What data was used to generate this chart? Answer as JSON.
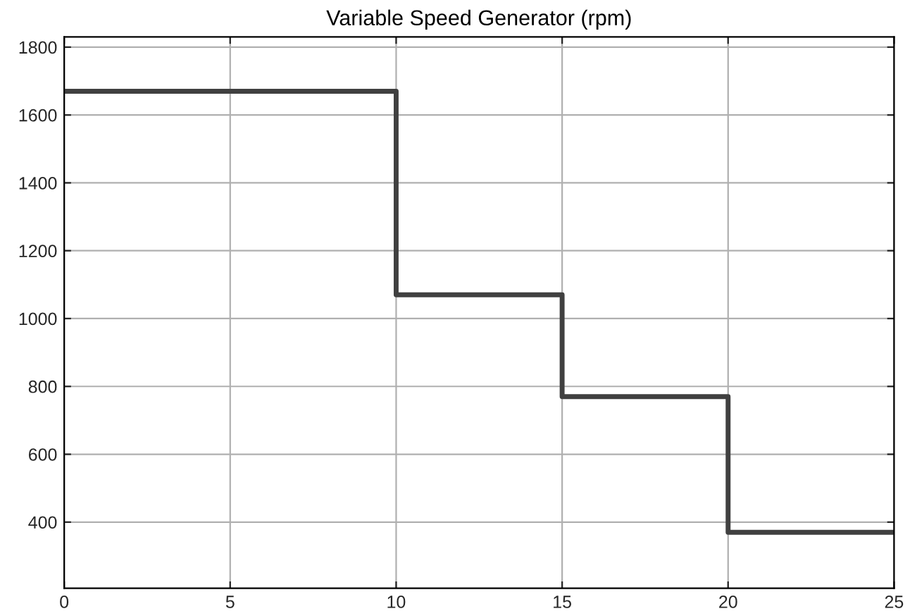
{
  "chart_data": {
    "type": "step",
    "title": "Variable Speed Generator (rpm)",
    "x": [
      0,
      10,
      15,
      20,
      25
    ],
    "series": [
      {
        "color": "#404040",
        "values": [
          1670,
          1070,
          770,
          370,
          370
        ]
      }
    ],
    "xlim": [
      0,
      25
    ],
    "xticks": [
      0,
      5,
      10,
      15,
      20,
      25
    ],
    "ylim": [
      205,
      1830
    ],
    "yticks": [
      400,
      600,
      800,
      1000,
      1200,
      1400,
      1600,
      1800
    ],
    "grid": true,
    "legend": false,
    "marker": "none",
    "line_style": "solid"
  }
}
